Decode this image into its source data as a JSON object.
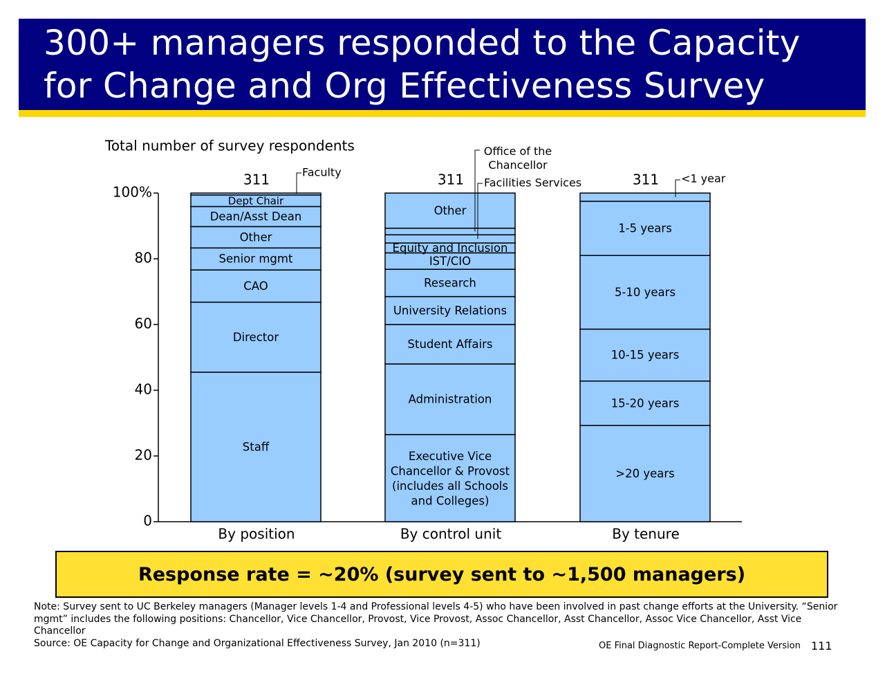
{
  "title": "300+ managers responded to the Capacity for Change and Org Effectiveness Survey",
  "chart_data": {
    "type": "bar",
    "subtitle": "Total number of survey respondents",
    "yticks": [
      "100%",
      "80",
      "60",
      "40",
      "20",
      "0"
    ],
    "ylim": [
      0,
      100
    ],
    "bars": [
      {
        "label": "By position",
        "total": "311",
        "segments": [
          {
            "name": "Staff",
            "value": 45.5
          },
          {
            "name": "Director",
            "value": 21.3
          },
          {
            "name": "CAO",
            "value": 9.8
          },
          {
            "name": "Senior mgmt",
            "value": 6.7
          },
          {
            "name": "Other",
            "value": 6.5
          },
          {
            "name": "Dean/Asst Dean",
            "value": 6.1
          },
          {
            "name": "Dept Chair",
            "value": 3.5
          },
          {
            "name": "Faculty",
            "value": 0.6
          }
        ],
        "callouts": [
          "Faculty"
        ]
      },
      {
        "label": "By control unit",
        "total": "311",
        "segments": [
          {
            "name": "Executive Vice Chancellor & Provost (includes all Schools and Colleges)",
            "value": 26.5
          },
          {
            "name": "Administration",
            "value": 21.5
          },
          {
            "name": "Student Affairs",
            "value": 12.0
          },
          {
            "name": "University Relations",
            "value": 8.5
          },
          {
            "name": "Research",
            "value": 8.3
          },
          {
            "name": "IST/CIO",
            "value": 5.0
          },
          {
            "name": "Equity and Inclusion",
            "value": 3.0
          },
          {
            "name": "Facilities Services",
            "value": 2.5
          },
          {
            "name": "Office of the Chancellor",
            "value": 2.0
          },
          {
            "name": "Other",
            "value": 10.7
          }
        ],
        "callouts": [
          "Office of the Chancellor",
          "Facilities Services"
        ]
      },
      {
        "label": "By tenure",
        "total": "311",
        "segments": [
          {
            "name": ">20 years",
            "value": 29.3
          },
          {
            "name": "15-20 years",
            "value": 13.5
          },
          {
            "name": "10-15 years",
            "value": 15.8
          },
          {
            "name": "5-10 years",
            "value": 22.4
          },
          {
            "name": "1-5 years",
            "value": 16.5
          },
          {
            "name": "<1 year",
            "value": 2.5
          }
        ],
        "callouts": [
          "<1 year"
        ]
      }
    ]
  },
  "response_rate": "Response rate = ~20% (survey sent to ~1,500 managers)",
  "note": "Note: Survey sent to UC Berkeley managers (Manager levels 1-4 and Professional levels 4-5) who have been involved in past change efforts at the University. “Senior mgmt” includes the following positions: Chancellor, Vice Chancellor, Provost, Vice Provost, Assoc Chancellor, Asst Chancellor, Assoc Vice Chancellor, Asst Vice Chancellor",
  "source": "Source: OE Capacity for Change and Organizational Effectiveness Survey, Jan 2010 (n=311)",
  "footer": "OE Final Diagnostic Report-Complete Version",
  "page_number": "111",
  "colors": {
    "title_bg": "#000080",
    "accent": "#ffd700",
    "bar_fill": "#99ccff",
    "highlight": "#ffe033"
  }
}
